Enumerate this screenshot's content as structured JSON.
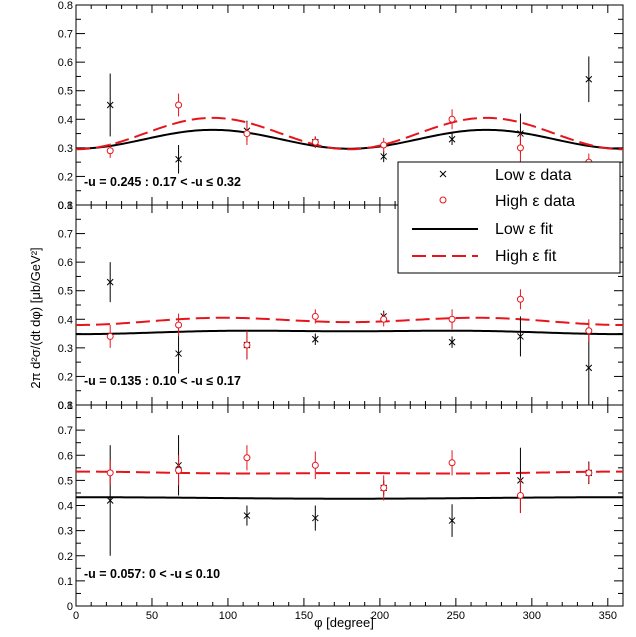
{
  "chart_data": {
    "type": "scatter",
    "xlabel": "φ [degree]",
    "ylabel": "2π d²σ/(dt dφ) [μb/GeV²]",
    "xlim": [
      0,
      360
    ],
    "x_ticks": [
      "0",
      "50",
      "100",
      "150",
      "200",
      "250",
      "300",
      "350"
    ],
    "y_ticks": [
      "0",
      "0.1",
      "0.2",
      "0.3",
      "0.4",
      "0.5",
      "0.6",
      "0.7",
      "0.8"
    ],
    "legend": {
      "position": "middle-right",
      "entries": [
        {
          "label": "Low ε data",
          "marker": "x",
          "color": "#000000"
        },
        {
          "label": "High ε data",
          "marker": "o",
          "color": "#e8141b"
        },
        {
          "label": "Low ε fit",
          "line": "solid",
          "color": "#000000"
        },
        {
          "label": "High ε fit",
          "line": "dashed",
          "color": "#e8141b"
        }
      ]
    },
    "panels": [
      {
        "label": "-u = 0.245 : 0.17 < -u ≤ 0.32",
        "ylim": [
          0.1,
          0.8
        ],
        "series": [
          {
            "name": "Low ε data",
            "color": "#000000",
            "marker": "x",
            "points": [
              {
                "x": 22.5,
                "y": 0.45,
                "err": 0.11
              },
              {
                "x": 67.5,
                "y": 0.26,
                "err": 0.05
              },
              {
                "x": 112.5,
                "y": 0.36,
                "err": 0.035
              },
              {
                "x": 157.5,
                "y": 0.32,
                "err": 0.02
              },
              {
                "x": 202.5,
                "y": 0.27,
                "err": 0.02
              },
              {
                "x": 247.5,
                "y": 0.33,
                "err": 0.02
              },
              {
                "x": 292.5,
                "y": 0.35,
                "err": 0.07
              },
              {
                "x": 337.5,
                "y": 0.54,
                "err": 0.08
              }
            ]
          },
          {
            "name": "High ε data",
            "color": "#e8141b",
            "marker": "o",
            "points": [
              {
                "x": 22.5,
                "y": 0.29,
                "err": 0.025
              },
              {
                "x": 67.5,
                "y": 0.45,
                "err": 0.04
              },
              {
                "x": 112.5,
                "y": 0.35,
                "err": 0.04
              },
              {
                "x": 157.5,
                "y": 0.32,
                "err": 0.02
              },
              {
                "x": 202.5,
                "y": 0.31,
                "err": 0.025
              },
              {
                "x": 247.5,
                "y": 0.4,
                "err": 0.035
              },
              {
                "x": 292.5,
                "y": 0.3,
                "err": 0.05
              },
              {
                "x": 337.5,
                "y": 0.25,
                "err": 0.03
              }
            ]
          }
        ],
        "fits": {
          "low": {
            "base": 0.33,
            "cos2": -0.033,
            "cos1": 0.0
          },
          "high": {
            "base": 0.35,
            "cos2": -0.055,
            "cos1": 0.0
          }
        }
      },
      {
        "label": "-u = 0.135 : 0.10 < -u ≤ 0.17",
        "ylim": [
          0.1,
          0.8
        ],
        "series": [
          {
            "name": "Low ε data",
            "color": "#000000",
            "marker": "x",
            "points": [
              {
                "x": 22.5,
                "y": 0.53,
                "err": 0.07
              },
              {
                "x": 67.5,
                "y": 0.28,
                "err": 0.07
              },
              {
                "x": 112.5,
                "y": 0.31,
                "err": 0.05
              },
              {
                "x": 157.5,
                "y": 0.33,
                "err": 0.02
              },
              {
                "x": 202.5,
                "y": 0.41,
                "err": 0.02
              },
              {
                "x": 247.5,
                "y": 0.32,
                "err": 0.02
              },
              {
                "x": 292.5,
                "y": 0.34,
                "err": 0.07
              },
              {
                "x": 337.5,
                "y": 0.23,
                "err": 0.13
              }
            ]
          },
          {
            "name": "High ε data",
            "color": "#e8141b",
            "marker": "o",
            "points": [
              {
                "x": 22.5,
                "y": 0.34,
                "err": 0.04
              },
              {
                "x": 67.5,
                "y": 0.38,
                "err": 0.04
              },
              {
                "x": 112.5,
                "y": 0.31,
                "err": 0.05
              },
              {
                "x": 157.5,
                "y": 0.41,
                "err": 0.025
              },
              {
                "x": 202.5,
                "y": 0.4,
                "err": 0.025
              },
              {
                "x": 247.5,
                "y": 0.4,
                "err": 0.035
              },
              {
                "x": 292.5,
                "y": 0.47,
                "err": 0.035
              },
              {
                "x": 337.5,
                "y": 0.36,
                "err": 0.04
              }
            ]
          }
        ],
        "fits": {
          "low": {
            "base": 0.356,
            "cos2": -0.003,
            "cos1": -0.005
          },
          "high": {
            "base": 0.395,
            "cos2": -0.01,
            "cos1": -0.005
          }
        }
      },
      {
        "label": "-u = 0.057: 0 < -u ≤ 0.10",
        "ylim": [
          0,
          0.8
        ],
        "series": [
          {
            "name": "Low ε data",
            "color": "#000000",
            "marker": "x",
            "points": [
              {
                "x": 22.5,
                "y": 0.42,
                "err": 0.22
              },
              {
                "x": 67.5,
                "y": 0.56,
                "err": 0.12
              },
              {
                "x": 112.5,
                "y": 0.36,
                "err": 0.04
              },
              {
                "x": 157.5,
                "y": 0.35,
                "err": 0.05
              },
              {
                "x": 202.5,
                "y": 0.47,
                "err": 0.03
              },
              {
                "x": 247.5,
                "y": 0.34,
                "err": 0.065
              },
              {
                "x": 292.5,
                "y": 0.5,
                "err": 0.13
              },
              {
                "x": 337.5,
                "y": 0.53,
                "err": 0.045
              }
            ]
          },
          {
            "name": "High ε data",
            "color": "#e8141b",
            "marker": "o",
            "points": [
              {
                "x": 22.5,
                "y": 0.53,
                "err": 0.05
              },
              {
                "x": 67.5,
                "y": 0.54,
                "err": 0.06
              },
              {
                "x": 112.5,
                "y": 0.59,
                "err": 0.05
              },
              {
                "x": 157.5,
                "y": 0.56,
                "err": 0.055
              },
              {
                "x": 202.5,
                "y": 0.47,
                "err": 0.05
              },
              {
                "x": 247.5,
                "y": 0.57,
                "err": 0.05
              },
              {
                "x": 292.5,
                "y": 0.44,
                "err": 0.07
              },
              {
                "x": 337.5,
                "y": 0.53,
                "err": 0.04
              }
            ]
          }
        ],
        "fits": {
          "low": {
            "base": 0.43,
            "cos2": 0.0,
            "cos1": 0.003
          },
          "high": {
            "base": 0.53,
            "cos2": 0.002,
            "cos1": 0.003
          }
        }
      }
    ]
  }
}
